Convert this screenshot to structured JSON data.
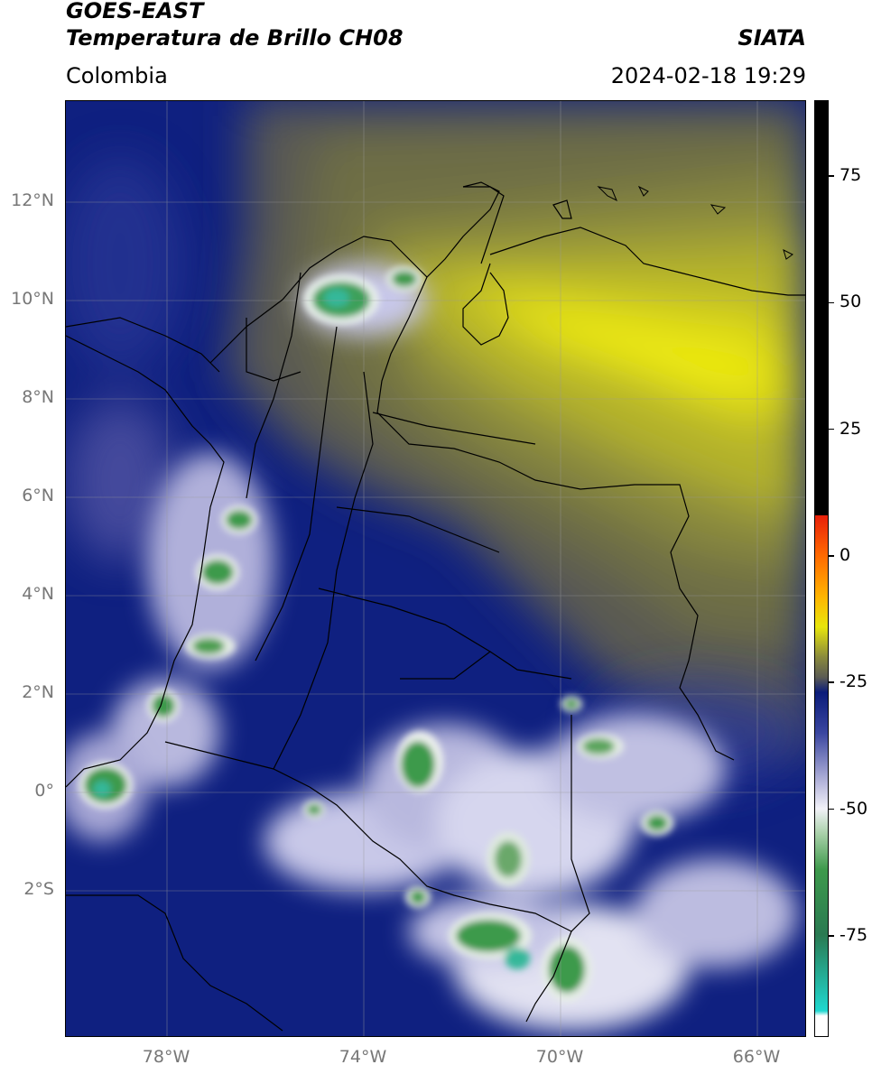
{
  "header": {
    "satellite": "GOES-EAST",
    "product": "Temperatura de Brillo CH08",
    "region": "Colombia",
    "source": "SIATA",
    "datetime": "2024-02-18 19:29"
  },
  "map": {
    "latitude_labels": [
      "12°N",
      "10°N",
      "8°N",
      "6°N",
      "4°N",
      "2°N",
      "0°",
      "2°S"
    ],
    "longitude_labels": [
      "78°W",
      "74°W",
      "70°W",
      "66°W"
    ]
  },
  "colorbar": {
    "tick_labels": [
      "75",
      "50",
      "25",
      "0",
      "-25",
      "-50",
      "-75"
    ],
    "tick_values": [
      75,
      50,
      25,
      0,
      -25,
      -50,
      -75
    ],
    "range": [
      -95,
      90
    ]
  },
  "colors": {
    "cold_deep_blue": "#0b1c7a",
    "cloud_white": "#f2f2f8",
    "very_cold_green": "#3e9a4c",
    "dry_yellow": "#e8e60c",
    "olive": "#8a8a3c",
    "grey": "#5c5c54",
    "black_warm": "#000000",
    "red": "#e8200a",
    "cyan": "#20d8d0"
  }
}
